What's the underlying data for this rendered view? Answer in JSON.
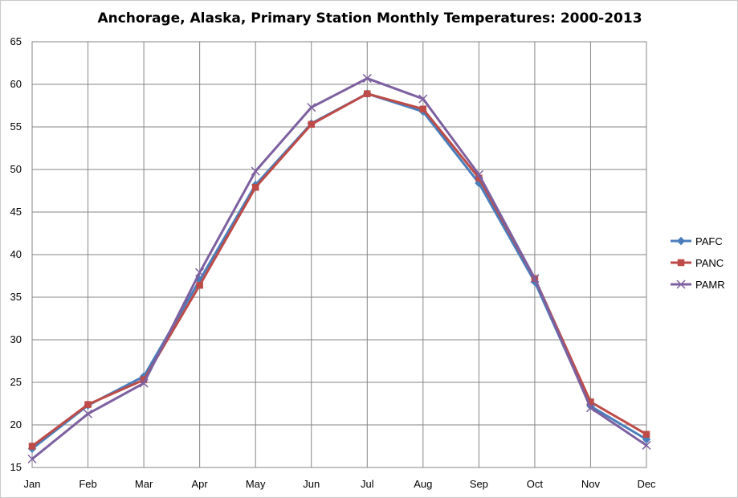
{
  "chart_data": {
    "type": "line",
    "title": "Anchorage, Alaska, Primary Station Monthly Temperatures: 2000-2013",
    "xlabel": "",
    "ylabel": "",
    "categories": [
      "Jan",
      "Feb",
      "Mar",
      "Apr",
      "May",
      "Jun",
      "Jul",
      "Aug",
      "Sep",
      "Oct",
      "Nov",
      "Dec"
    ],
    "ylim": [
      15,
      65
    ],
    "yticks": [
      15,
      20,
      25,
      30,
      35,
      40,
      45,
      50,
      55,
      60,
      65
    ],
    "grid": true,
    "legend_position": "right",
    "series": [
      {
        "name": "PAFC",
        "color": "#4a7ebb",
        "marker": "diamond",
        "values": [
          17.2,
          22.3,
          25.7,
          37.0,
          48.2,
          55.4,
          58.9,
          56.8,
          48.4,
          36.8,
          22.2,
          18.3
        ]
      },
      {
        "name": "PANC",
        "color": "#be4b48",
        "marker": "square",
        "values": [
          17.5,
          22.4,
          25.3,
          36.4,
          47.9,
          55.3,
          58.9,
          57.1,
          49.0,
          37.2,
          22.7,
          18.9
        ]
      },
      {
        "name": "PAMR",
        "color": "#7d60a0",
        "marker": "x",
        "values": [
          16.0,
          21.3,
          24.9,
          37.9,
          49.8,
          57.3,
          60.7,
          58.3,
          49.4,
          37.2,
          22.0,
          17.6
        ]
      }
    ]
  }
}
